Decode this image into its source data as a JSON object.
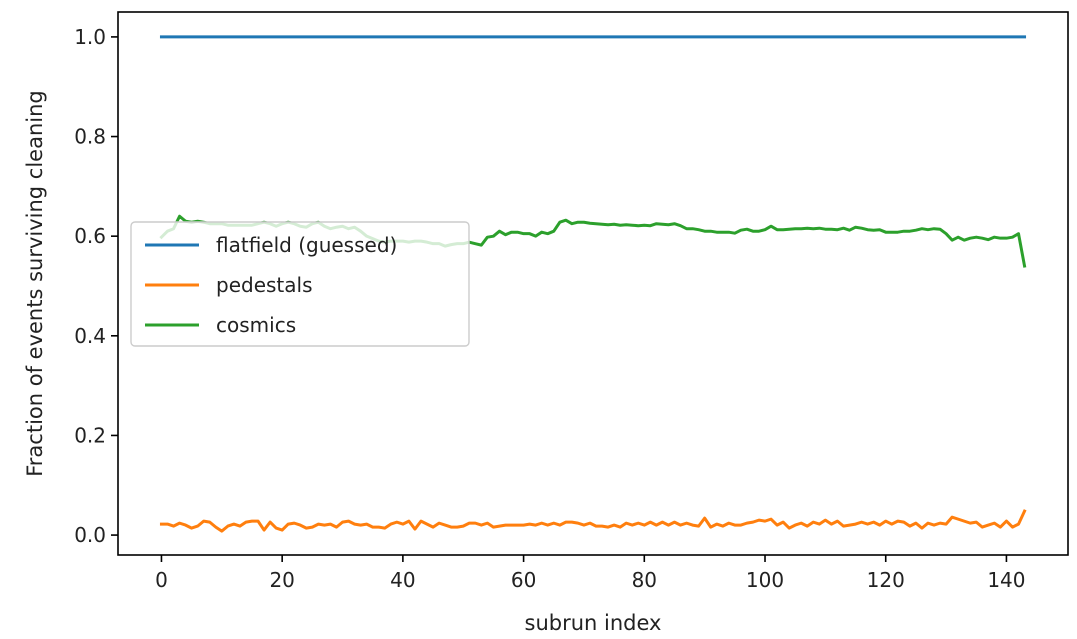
{
  "chart_data": {
    "type": "line",
    "title": "",
    "xlabel": "subrun index",
    "ylabel": "Fraction of events surviving cleaning",
    "xlim": [
      -7.2,
      150.2
    ],
    "ylim": [
      -0.04,
      1.05
    ],
    "xticks": [
      0,
      20,
      40,
      60,
      80,
      100,
      120,
      140
    ],
    "xtick_labels": [
      "0",
      "20",
      "40",
      "60",
      "80",
      "100",
      "120",
      "140"
    ],
    "yticks": [
      0.0,
      0.2,
      0.4,
      0.6,
      0.8,
      1.0
    ],
    "ytick_labels": [
      "0.0",
      "0.2",
      "0.4",
      "0.6",
      "0.8",
      "1.0"
    ],
    "grid": false,
    "legend_position": "center-left",
    "series": [
      {
        "name": "flatfield (guessed)",
        "color": "#1f77b4",
        "x": [
          0,
          143
        ],
        "y": [
          1.0,
          1.0
        ]
      },
      {
        "name": "pedestals",
        "color": "#ff7f0e",
        "x": [
          0,
          1,
          2,
          3,
          4,
          5,
          6,
          7,
          8,
          9,
          10,
          11,
          12,
          13,
          14,
          15,
          16,
          17,
          18,
          19,
          20,
          21,
          22,
          23,
          24,
          25,
          26,
          27,
          28,
          29,
          30,
          31,
          32,
          33,
          34,
          35,
          36,
          37,
          38,
          39,
          40,
          41,
          42,
          43,
          44,
          45,
          46,
          47,
          48,
          49,
          50,
          51,
          52,
          53,
          54,
          55,
          56,
          57,
          58,
          59,
          60,
          61,
          62,
          63,
          64,
          65,
          66,
          67,
          68,
          69,
          70,
          71,
          72,
          73,
          74,
          75,
          76,
          77,
          78,
          79,
          80,
          81,
          82,
          83,
          84,
          85,
          86,
          87,
          88,
          89,
          90,
          91,
          92,
          93,
          94,
          95,
          96,
          97,
          98,
          99,
          100,
          101,
          102,
          103,
          104,
          105,
          106,
          107,
          108,
          109,
          110,
          111,
          112,
          113,
          114,
          115,
          116,
          117,
          118,
          119,
          120,
          121,
          122,
          123,
          124,
          125,
          126,
          127,
          128,
          129,
          130,
          131,
          132,
          133,
          134,
          135,
          136,
          137,
          138,
          139,
          140,
          141,
          142,
          143
        ],
        "y": [
          0.022,
          0.022,
          0.018,
          0.024,
          0.02,
          0.014,
          0.018,
          0.028,
          0.026,
          0.016,
          0.008,
          0.018,
          0.022,
          0.018,
          0.026,
          0.028,
          0.028,
          0.01,
          0.026,
          0.014,
          0.01,
          0.022,
          0.024,
          0.02,
          0.014,
          0.016,
          0.022,
          0.02,
          0.022,
          0.016,
          0.026,
          0.028,
          0.022,
          0.02,
          0.022,
          0.016,
          0.016,
          0.014,
          0.022,
          0.026,
          0.022,
          0.028,
          0.012,
          0.028,
          0.022,
          0.016,
          0.024,
          0.02,
          0.016,
          0.016,
          0.018,
          0.024,
          0.024,
          0.02,
          0.024,
          0.016,
          0.018,
          0.02,
          0.02,
          0.02,
          0.02,
          0.022,
          0.02,
          0.024,
          0.02,
          0.024,
          0.02,
          0.026,
          0.026,
          0.024,
          0.02,
          0.024,
          0.018,
          0.018,
          0.016,
          0.02,
          0.016,
          0.024,
          0.02,
          0.024,
          0.02,
          0.026,
          0.02,
          0.026,
          0.02,
          0.026,
          0.02,
          0.024,
          0.02,
          0.018,
          0.034,
          0.016,
          0.022,
          0.018,
          0.024,
          0.02,
          0.02,
          0.024,
          0.026,
          0.03,
          0.028,
          0.032,
          0.02,
          0.026,
          0.014,
          0.02,
          0.024,
          0.018,
          0.026,
          0.022,
          0.03,
          0.022,
          0.028,
          0.018,
          0.02,
          0.022,
          0.026,
          0.022,
          0.026,
          0.02,
          0.028,
          0.022,
          0.028,
          0.026,
          0.018,
          0.024,
          0.014,
          0.024,
          0.02,
          0.024,
          0.022,
          0.036,
          0.032,
          0.028,
          0.024,
          0.026,
          0.016,
          0.02,
          0.024,
          0.016,
          0.028,
          0.016,
          0.022,
          0.048
        ]
      },
      {
        "name": "cosmics",
        "color": "#2ca02c",
        "x": [
          0,
          1,
          2,
          3,
          4,
          5,
          6,
          7,
          8,
          9,
          10,
          11,
          12,
          13,
          14,
          15,
          16,
          17,
          18,
          19,
          20,
          21,
          22,
          23,
          24,
          25,
          26,
          27,
          28,
          29,
          30,
          31,
          32,
          33,
          34,
          35,
          36,
          37,
          38,
          39,
          40,
          41,
          42,
          43,
          44,
          45,
          46,
          47,
          48,
          49,
          50,
          51,
          52,
          53,
          54,
          55,
          56,
          57,
          58,
          59,
          60,
          61,
          62,
          63,
          64,
          65,
          66,
          67,
          68,
          69,
          70,
          71,
          72,
          73,
          74,
          75,
          76,
          77,
          78,
          79,
          80,
          81,
          82,
          83,
          84,
          85,
          86,
          87,
          88,
          89,
          90,
          91,
          92,
          93,
          94,
          95,
          96,
          97,
          98,
          99,
          100,
          101,
          102,
          103,
          104,
          105,
          106,
          107,
          108,
          109,
          110,
          111,
          112,
          113,
          114,
          115,
          116,
          117,
          118,
          119,
          120,
          121,
          122,
          123,
          124,
          125,
          126,
          127,
          128,
          129,
          130,
          131,
          132,
          133,
          134,
          135,
          136,
          137,
          138,
          139,
          140,
          141,
          142,
          143
        ],
        "y": [
          0.598,
          0.61,
          0.615,
          0.64,
          0.63,
          0.628,
          0.63,
          0.628,
          0.625,
          0.625,
          0.625,
          0.622,
          0.622,
          0.622,
          0.622,
          0.622,
          0.625,
          0.628,
          0.625,
          0.62,
          0.625,
          0.628,
          0.625,
          0.62,
          0.618,
          0.625,
          0.628,
          0.62,
          0.615,
          0.618,
          0.62,
          0.615,
          0.618,
          0.61,
          0.6,
          0.595,
          0.59,
          0.588,
          0.59,
          0.59,
          0.59,
          0.588,
          0.59,
          0.59,
          0.588,
          0.585,
          0.585,
          0.58,
          0.583,
          0.585,
          0.585,
          0.588,
          0.585,
          0.582,
          0.598,
          0.6,
          0.61,
          0.603,
          0.608,
          0.608,
          0.605,
          0.605,
          0.6,
          0.608,
          0.605,
          0.61,
          0.628,
          0.632,
          0.625,
          0.628,
          0.628,
          0.626,
          0.625,
          0.624,
          0.623,
          0.624,
          0.622,
          0.623,
          0.622,
          0.621,
          0.622,
          0.621,
          0.625,
          0.624,
          0.623,
          0.625,
          0.621,
          0.615,
          0.615,
          0.613,
          0.61,
          0.61,
          0.608,
          0.608,
          0.608,
          0.606,
          0.612,
          0.614,
          0.61,
          0.61,
          0.613,
          0.62,
          0.613,
          0.613,
          0.614,
          0.615,
          0.615,
          0.616,
          0.615,
          0.616,
          0.614,
          0.614,
          0.613,
          0.616,
          0.612,
          0.618,
          0.616,
          0.613,
          0.612,
          0.613,
          0.608,
          0.608,
          0.608,
          0.61,
          0.61,
          0.612,
          0.615,
          0.613,
          0.615,
          0.614,
          0.605,
          0.592,
          0.598,
          0.592,
          0.596,
          0.598,
          0.596,
          0.593,
          0.598,
          0.596,
          0.596,
          0.598,
          0.605,
          0.54
        ]
      }
    ]
  }
}
